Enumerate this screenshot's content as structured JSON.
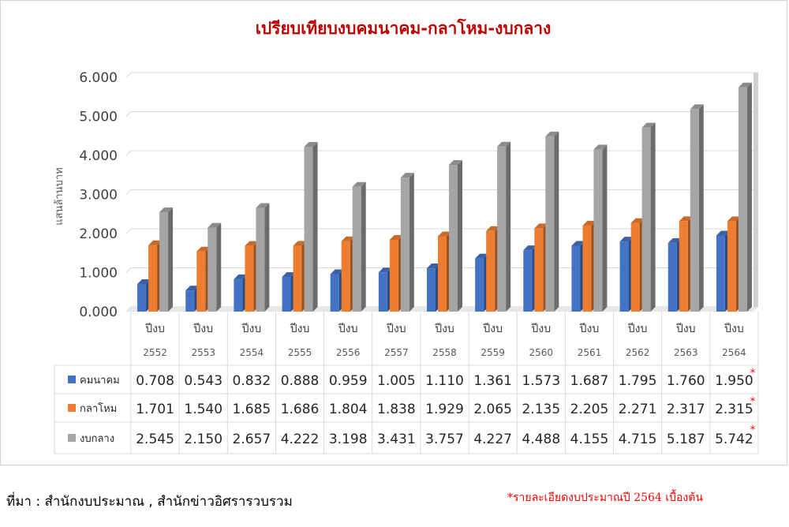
{
  "chart_data": {
    "type": "bar",
    "title": "เปรียบเทียบงบคมนาคม-กลาโหม-งบกลาง",
    "ylabel": "แสนล้านบาท",
    "xlabel": "",
    "ylim": [
      0,
      6
    ],
    "yticks": [
      "0.000",
      "1.000",
      "2.000",
      "3.000",
      "4.000",
      "5.000",
      "6.000"
    ],
    "grid": true,
    "legend": "data-table",
    "category_prefix": "ปีงบ",
    "categories": [
      "2552",
      "2553",
      "2554",
      "2555",
      "2556",
      "2557",
      "2558",
      "2559",
      "2560",
      "2561",
      "2562",
      "2563",
      "2564"
    ],
    "series": [
      {
        "name": "คมนาคม",
        "color": "#4472c4",
        "values": [
          0.708,
          0.543,
          0.832,
          0.888,
          0.959,
          1.005,
          1.11,
          1.361,
          1.573,
          1.687,
          1.795,
          1.76,
          1.95
        ],
        "labels": [
          "0.708",
          "0.543",
          "0.832",
          "0.888",
          "0.959",
          "1.005",
          "1.110",
          "1.361",
          "1.573",
          "1.687",
          "1.795",
          "1.760",
          "1.950"
        ]
      },
      {
        "name": "กลาโหม",
        "color": "#ed7d31",
        "values": [
          1.701,
          1.54,
          1.685,
          1.686,
          1.804,
          1.838,
          1.929,
          2.065,
          2.135,
          2.205,
          2.271,
          2.317,
          2.315
        ],
        "labels": [
          "1.701",
          "1.540",
          "1.685",
          "1.686",
          "1.804",
          "1.838",
          "1.929",
          "2.065",
          "2.135",
          "2.205",
          "2.271",
          "2.317",
          "2.315"
        ]
      },
      {
        "name": "งบกลาง",
        "color": "#a5a5a5",
        "values": [
          2.545,
          2.15,
          2.657,
          4.222,
          3.198,
          3.431,
          3.757,
          4.227,
          4.488,
          4.155,
          4.715,
          5.187,
          5.742
        ],
        "labels": [
          "2.545",
          "2.150",
          "2.657",
          "4.222",
          "3.198",
          "3.431",
          "3.757",
          "4.227",
          "4.488",
          "4.155",
          "4.715",
          "5.187",
          "5.742"
        ]
      }
    ],
    "footnote_mark": "*"
  },
  "source_text": "ที่มา : สำนักงบประมาณ , สำนักข่าวอิศรารวบรวม",
  "note_text": "*รายละเอียดงบประมาณปี 2564 เบื้องต้น"
}
